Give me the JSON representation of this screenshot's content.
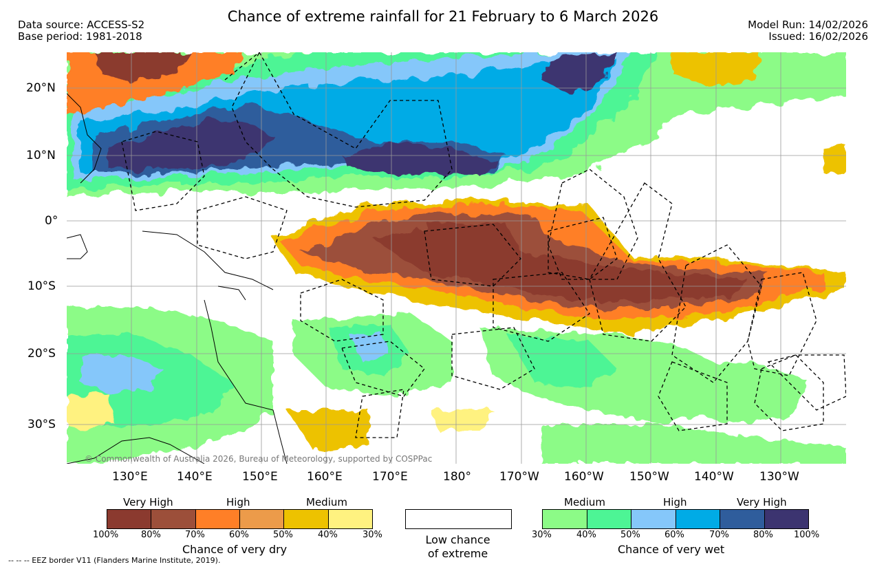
{
  "header": {
    "title": "Chance of extreme rainfall for 21 February to 6 March 2026",
    "data_source": "Data source: ACCESS-S2",
    "base_period": "Base period: 1981-2018",
    "model_run": "Model Run: 14/02/2026",
    "issued": "Issued: 16/02/2026"
  },
  "map": {
    "lat_labels": [
      "20°N",
      "10°N",
      "0°",
      "10°S",
      "20°S",
      "30°S"
    ],
    "lon_labels": [
      "130°E",
      "140°E",
      "150°E",
      "160°E",
      "170°E",
      "180°",
      "170°W",
      "160°W",
      "150°W",
      "140°W",
      "130°W"
    ],
    "copyright": "© Commonwealth of Australia 2026, Bureau of Meteorology, supported by COSPPac",
    "eez_note": "-- -- -- EEZ border V11 (Flanders Marine Institute, 2019)."
  },
  "legend": {
    "dry": {
      "title": "Chance of very dry",
      "headers": [
        "Very High",
        "High",
        "Medium"
      ],
      "ticks": [
        "100%",
        "80%",
        "70%",
        "60%",
        "50%",
        "40%",
        "30%"
      ],
      "colors": [
        "#8b3a2f",
        "#9c4f3a",
        "#ff7f27",
        "#ec9b4a",
        "#edc200",
        "#fff280"
      ]
    },
    "low": {
      "line1": "Low chance",
      "line2": "of extreme"
    },
    "wet": {
      "title": "Chance of very wet",
      "headers": [
        "Medium",
        "High",
        "Very High"
      ],
      "ticks": [
        "30%",
        "40%",
        "50%",
        "60%",
        "70%",
        "80%",
        "100%"
      ],
      "colors": [
        "#8cfb87",
        "#4df595",
        "#85c7fa",
        "#00abe6",
        "#2f5d9c",
        "#3c3470"
      ]
    }
  }
}
